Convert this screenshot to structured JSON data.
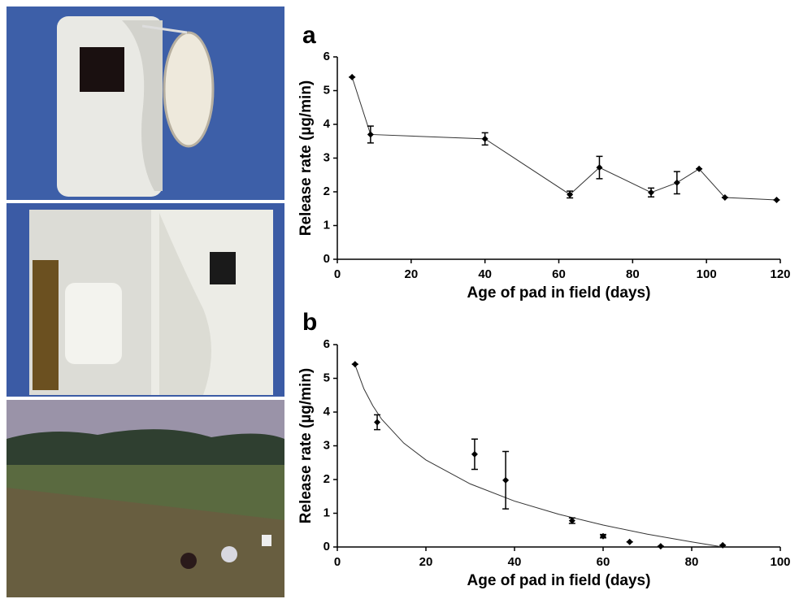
{
  "chart_data": [
    {
      "type": "line",
      "panel_label": "a",
      "x_label": "Age of pad in field (days)",
      "y_label": "Release rate (µg/min)",
      "x": [
        4,
        9,
        40,
        63,
        71,
        85,
        92,
        98,
        105,
        119
      ],
      "values": [
        5.4,
        3.7,
        3.57,
        1.92,
        2.72,
        1.98,
        2.27,
        2.68,
        1.83,
        1.76
      ],
      "errors": [
        0,
        0.25,
        0.18,
        0.1,
        0.33,
        0.13,
        0.33,
        0,
        0,
        0
      ],
      "color": "#000000",
      "xlim": [
        0,
        120
      ],
      "xticks": [
        0,
        20,
        40,
        60,
        80,
        100,
        120
      ],
      "ylim": [
        0,
        6
      ],
      "yticks": [
        0,
        1,
        2,
        3,
        4,
        5,
        6
      ]
    },
    {
      "type": "scatter",
      "panel_label": "b",
      "x_label": "Age of pad in field (days)",
      "y_label": "Release rate (µg/min)",
      "x": [
        4,
        9,
        31,
        38,
        53,
        60,
        66,
        73,
        87
      ],
      "values": [
        5.42,
        3.7,
        2.75,
        1.98,
        0.78,
        0.32,
        0.15,
        0.02,
        0.05
      ],
      "errors": [
        0,
        0.22,
        0.45,
        0.85,
        0.08,
        0.05,
        0,
        0,
        0
      ],
      "color": "#000000",
      "fit_line": {
        "x": [
          4,
          6,
          8,
          10,
          15,
          20,
          30,
          40,
          50,
          60,
          70,
          80,
          87
        ],
        "values": [
          5.4,
          4.69,
          4.19,
          3.79,
          3.08,
          2.58,
          1.87,
          1.36,
          0.97,
          0.65,
          0.38,
          0.15,
          0
        ]
      },
      "xlim": [
        0,
        100
      ],
      "xticks": [
        0,
        20,
        40,
        60,
        80,
        100
      ],
      "ylim": [
        0,
        6
      ],
      "yticks": [
        0,
        1,
        2,
        3,
        4,
        5,
        6
      ]
    }
  ]
}
